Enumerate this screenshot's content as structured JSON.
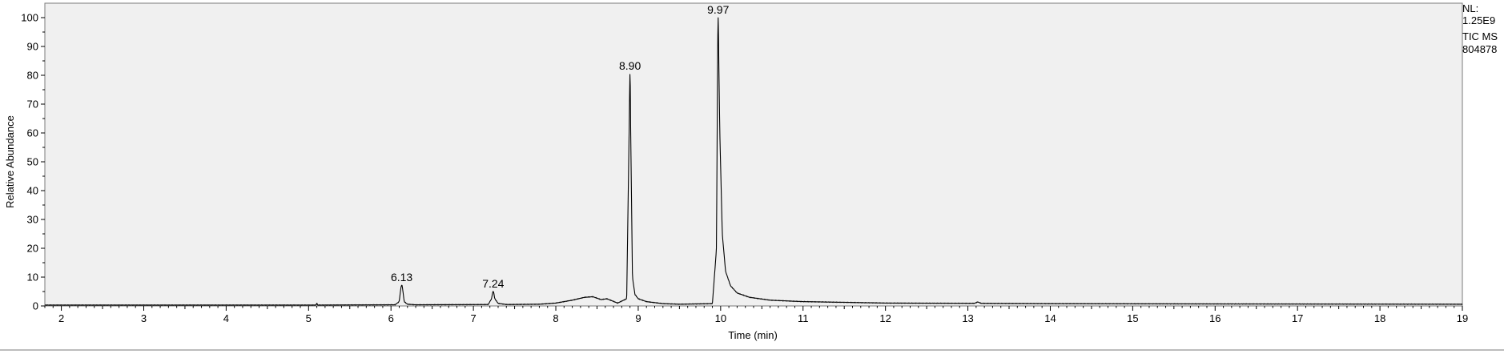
{
  "chart_data": {
    "type": "line",
    "xlabel": "Time (min)",
    "ylabel": "Relative Abundance",
    "xlim": [
      1.8,
      19.0
    ],
    "ylim": [
      0,
      100
    ],
    "x_ticks": [
      2,
      3,
      4,
      5,
      6,
      7,
      8,
      9,
      10,
      11,
      12,
      13,
      14,
      15,
      16,
      17,
      18,
      19
    ],
    "y_ticks": [
      0,
      10,
      20,
      30,
      40,
      50,
      60,
      70,
      80,
      90,
      100
    ],
    "grid": false,
    "plot_background": "#f0f0f0",
    "line_color": "#000000",
    "info": [
      "NL:",
      "1.25E9",
      "TIC  MS",
      "804878"
    ],
    "peaks": [
      {
        "label": "6.13",
        "rt": 6.13,
        "height": 7.2,
        "width": 0.018
      },
      {
        "label": "7.24",
        "rt": 7.24,
        "height": 5.0,
        "width": 0.016
      },
      {
        "label": "8.90",
        "rt": 8.9,
        "height": 80.5,
        "width": 0.011
      },
      {
        "label": "9.97",
        "rt": 9.97,
        "height": 100.0,
        "width": 0.012
      }
    ],
    "series": [
      {
        "x": [
          1.8,
          5.09,
          5.1,
          5.11,
          6.05,
          6.1,
          6.13,
          6.16,
          6.2,
          6.3,
          7.18,
          7.22,
          7.24,
          7.26,
          7.3,
          7.4,
          7.8,
          8.0,
          8.2,
          8.35,
          8.45,
          8.55,
          8.62,
          8.75,
          8.86,
          8.9,
          8.93,
          8.96,
          9.0,
          9.1,
          9.3,
          9.5,
          9.9,
          9.95,
          9.97,
          9.99,
          10.02,
          10.06,
          10.12,
          10.2,
          10.35,
          10.6,
          11.0,
          12.0,
          13.08,
          13.12,
          13.16,
          14.0,
          16.0,
          19.0
        ],
        "y": [
          0.3,
          0.3,
          1.0,
          0.3,
          0.4,
          1.5,
          7.2,
          1.5,
          0.6,
          0.4,
          0.5,
          2.5,
          5.0,
          2.5,
          0.9,
          0.5,
          0.6,
          1.0,
          2.0,
          3.0,
          3.2,
          2.2,
          2.5,
          1.0,
          2.5,
          80.5,
          10.0,
          4.0,
          2.5,
          1.5,
          0.8,
          0.6,
          0.8,
          20.0,
          100.0,
          60.0,
          25.0,
          12.0,
          7.0,
          4.5,
          3.0,
          2.0,
          1.5,
          1.0,
          0.9,
          1.4,
          0.9,
          0.8,
          0.7,
          0.6
        ]
      }
    ]
  }
}
